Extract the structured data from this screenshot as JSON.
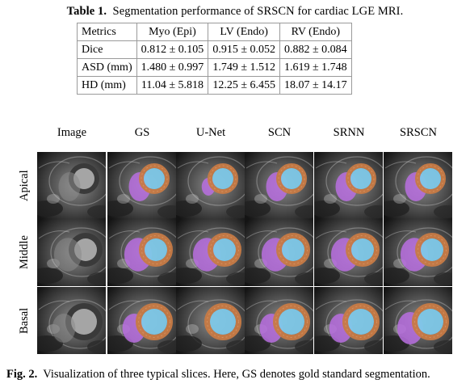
{
  "table": {
    "label": "Table 1.",
    "caption": "Segmentation performance of SRSCN for cardiac LGE MRI.",
    "headers": [
      "Metrics",
      "Myo (Epi)",
      "LV (Endo)",
      "RV (Endo)"
    ],
    "rows": [
      [
        "Dice",
        "0.812 ± 0.105",
        "0.915 ± 0.052",
        "0.882 ± 0.084"
      ],
      [
        "ASD (mm)",
        "1.480 ± 0.997",
        "1.749 ± 1.512",
        "1.619 ± 1.748"
      ],
      [
        "HD (mm)",
        "11.04 ± 5.818",
        "12.25 ± 6.455",
        "18.07 ± 14.17"
      ]
    ]
  },
  "figure": {
    "columns": [
      "Image",
      "GS",
      "U-Net",
      "SCN",
      "SRNN",
      "SRSCN"
    ],
    "rows": [
      "Apical",
      "Middle",
      "Basal"
    ],
    "label": "Fig. 2.",
    "caption": "Visualization of three typical slices. Here, GS denotes gold standard segmentation.",
    "colors": {
      "lv": "#7ec8e8",
      "myo": "#c77a45",
      "rv": "#b86ee0",
      "background": "#1a1a1a"
    }
  }
}
